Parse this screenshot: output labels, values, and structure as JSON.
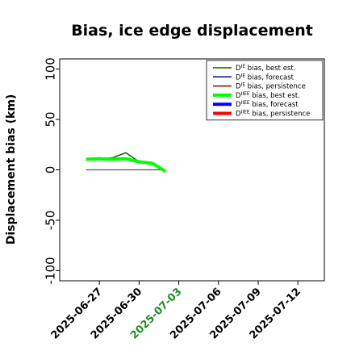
{
  "chart_data": {
    "type": "line",
    "title": "Bias, ice edge displacement",
    "ylabel": "Displacement bias (km)",
    "xlabel": "",
    "ylim": [
      -110,
      110
    ],
    "xlim": [
      "2025-06-24",
      "2025-07-14"
    ],
    "yticks": [
      -100,
      -50,
      0,
      50,
      100
    ],
    "xticks": [
      {
        "label": "2025-06-27",
        "color": "#000000"
      },
      {
        "label": "2025-06-30",
        "color": "#000000"
      },
      {
        "label": "2025-07-03",
        "color": "#228b22"
      },
      {
        "label": "2025-07-06",
        "color": "#000000"
      },
      {
        "label": "2025-07-09",
        "color": "#000000"
      },
      {
        "label": "2025-07-12",
        "color": "#000000"
      }
    ],
    "legend_position": "top-right",
    "grid": false,
    "series": [
      {
        "name": "D^IE bias, best est.",
        "name_base": "D",
        "name_sup": "IE",
        "name_rest": " bias, best est.",
        "color": "#006400",
        "width": 1.5,
        "x": [
          "2025-06-26",
          "2025-06-27",
          "2025-06-28",
          "2025-06-29",
          "2025-06-30",
          "2025-07-01",
          "2025-07-02"
        ],
        "values": [
          10,
          11,
          12,
          17,
          8,
          7,
          -2
        ]
      },
      {
        "name": "D^IE bias, forecast",
        "name_base": "D",
        "name_sup": "IE",
        "name_rest": " bias, forecast",
        "color": "#00008b",
        "width": 1.5,
        "x": [],
        "values": []
      },
      {
        "name": "D^IE bias, persistence",
        "name_base": "D",
        "name_sup": "IE",
        "name_rest": " bias, persistence",
        "color": "#8b0000",
        "width": 1.5,
        "x": [],
        "values": []
      },
      {
        "name": "D^IIEE bias, best est.",
        "name_base": "D",
        "name_sup": "IIEE",
        "name_rest": " bias, best est.",
        "color": "#00ff00",
        "width": 4,
        "x": [
          "2025-06-26",
          "2025-06-27",
          "2025-06-28",
          "2025-06-29",
          "2025-06-30",
          "2025-07-01",
          "2025-07-02"
        ],
        "values": [
          10.5,
          11,
          10.5,
          11,
          8,
          6.5,
          -1.5
        ]
      },
      {
        "name": "D^IIEE bias, forecast",
        "name_base": "D",
        "name_sup": "IIEE",
        "name_rest": " bias, forecast",
        "color": "#0000ff",
        "width": 4,
        "x": [],
        "values": []
      },
      {
        "name": "D^IIEE bias, persistence",
        "name_base": "D",
        "name_sup": "IIEE",
        "name_rest": " bias, persistence",
        "color": "#ff0000",
        "width": 4,
        "x": [],
        "values": []
      },
      {
        "name": "",
        "color": "#555555",
        "width": 1.2,
        "in_legend": false,
        "x": [
          "2025-06-26",
          "2025-07-02"
        ],
        "values": [
          0,
          0
        ]
      }
    ]
  }
}
